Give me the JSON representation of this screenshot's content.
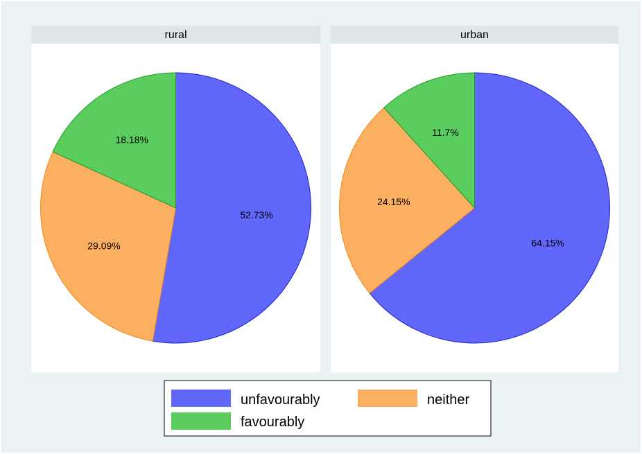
{
  "chart_data": [
    {
      "type": "pie",
      "panel": "rural",
      "categories": [
        "unfavourably",
        "neither",
        "favourably"
      ],
      "values": [
        52.73,
        29.09,
        18.18
      ],
      "labels": [
        "52.73%",
        "29.09%",
        "18.18%"
      ]
    },
    {
      "type": "pie",
      "panel": "urban",
      "categories": [
        "unfavourably",
        "neither",
        "favourably"
      ],
      "values": [
        64.15,
        24.15,
        11.7
      ],
      "labels": [
        "64.15%",
        "24.15%",
        "11.7%"
      ]
    }
  ],
  "legend": {
    "items": [
      {
        "label": "unfavourably",
        "color": "#6167fa"
      },
      {
        "label": "neither",
        "color": "#fbb061"
      },
      {
        "label": "favourably",
        "color": "#5bcd5f"
      }
    ]
  },
  "colors": {
    "outer_background": "#eaf2f3",
    "panel_background": "#ffffff",
    "strip_background": "#dde6e9",
    "unfavourably_edge": "#1c22c8",
    "neither_edge": "#f18a1c",
    "favourably_edge": "#1f9a22"
  }
}
